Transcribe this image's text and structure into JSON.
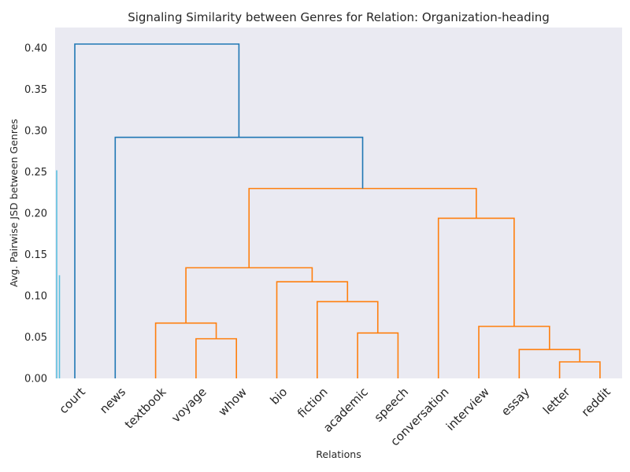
{
  "chart_data": {
    "type": "dendrogram",
    "title": "Signaling Similarity between Genres for Relation: Organization-heading",
    "xlabel": "Relations",
    "ylabel": "Avg. Pairwise JSD between Genres",
    "ylim": [
      0,
      0.425
    ],
    "yticks": [
      "0.00",
      "0.05",
      "0.10",
      "0.15",
      "0.20",
      "0.25",
      "0.30",
      "0.35",
      "0.40"
    ],
    "grid": false,
    "leaves": [
      "court",
      "news",
      "textbook",
      "voyage",
      "whow",
      "bio",
      "fiction",
      "academic",
      "speech",
      "conversation",
      "interview",
      "essay",
      "letter",
      "reddit"
    ],
    "colors": {
      "background": "#eaeaf2",
      "above_threshold": "#1f77b4",
      "cluster": "#ff7f0e",
      "left_bar": "#5bc0de"
    },
    "links": [
      {
        "left": "voyage",
        "right": "whow",
        "height": 0.048,
        "color": "cluster"
      },
      {
        "left": "textbook",
        "right": "voyage+whow",
        "height": 0.067,
        "color": "cluster"
      },
      {
        "left": "academic",
        "right": "speech",
        "height": 0.055,
        "color": "cluster"
      },
      {
        "left": "fiction",
        "right": "academic+speech",
        "height": 0.093,
        "color": "cluster"
      },
      {
        "left": "bio",
        "right": "fiction+academic+speech",
        "height": 0.117,
        "color": "cluster"
      },
      {
        "left": "textbook+voyage+whow",
        "right": "bio+fiction+academic+speech",
        "height": 0.134,
        "color": "cluster"
      },
      {
        "left": "letter",
        "right": "reddit",
        "height": 0.02,
        "color": "cluster"
      },
      {
        "left": "essay",
        "right": "letter+reddit",
        "height": 0.035,
        "color": "cluster"
      },
      {
        "left": "interview",
        "right": "essay+letter+reddit",
        "height": 0.063,
        "color": "cluster"
      },
      {
        "left": "conversation",
        "right": "interview+essay+letter+reddit",
        "height": 0.194,
        "color": "cluster"
      },
      {
        "left": "textbook..speech",
        "right": "conversation..reddit",
        "height": 0.23,
        "color": "cluster"
      },
      {
        "left": "news",
        "right": "textbook..reddit",
        "height": 0.292,
        "color": "above_threshold"
      },
      {
        "left": "court",
        "right": "news..reddit",
        "height": 0.405,
        "color": "above_threshold"
      }
    ],
    "left_bars": [
      {
        "top": 0.252,
        "color": "left_bar"
      },
      {
        "top": 0.125,
        "color": "left_bar"
      }
    ]
  }
}
